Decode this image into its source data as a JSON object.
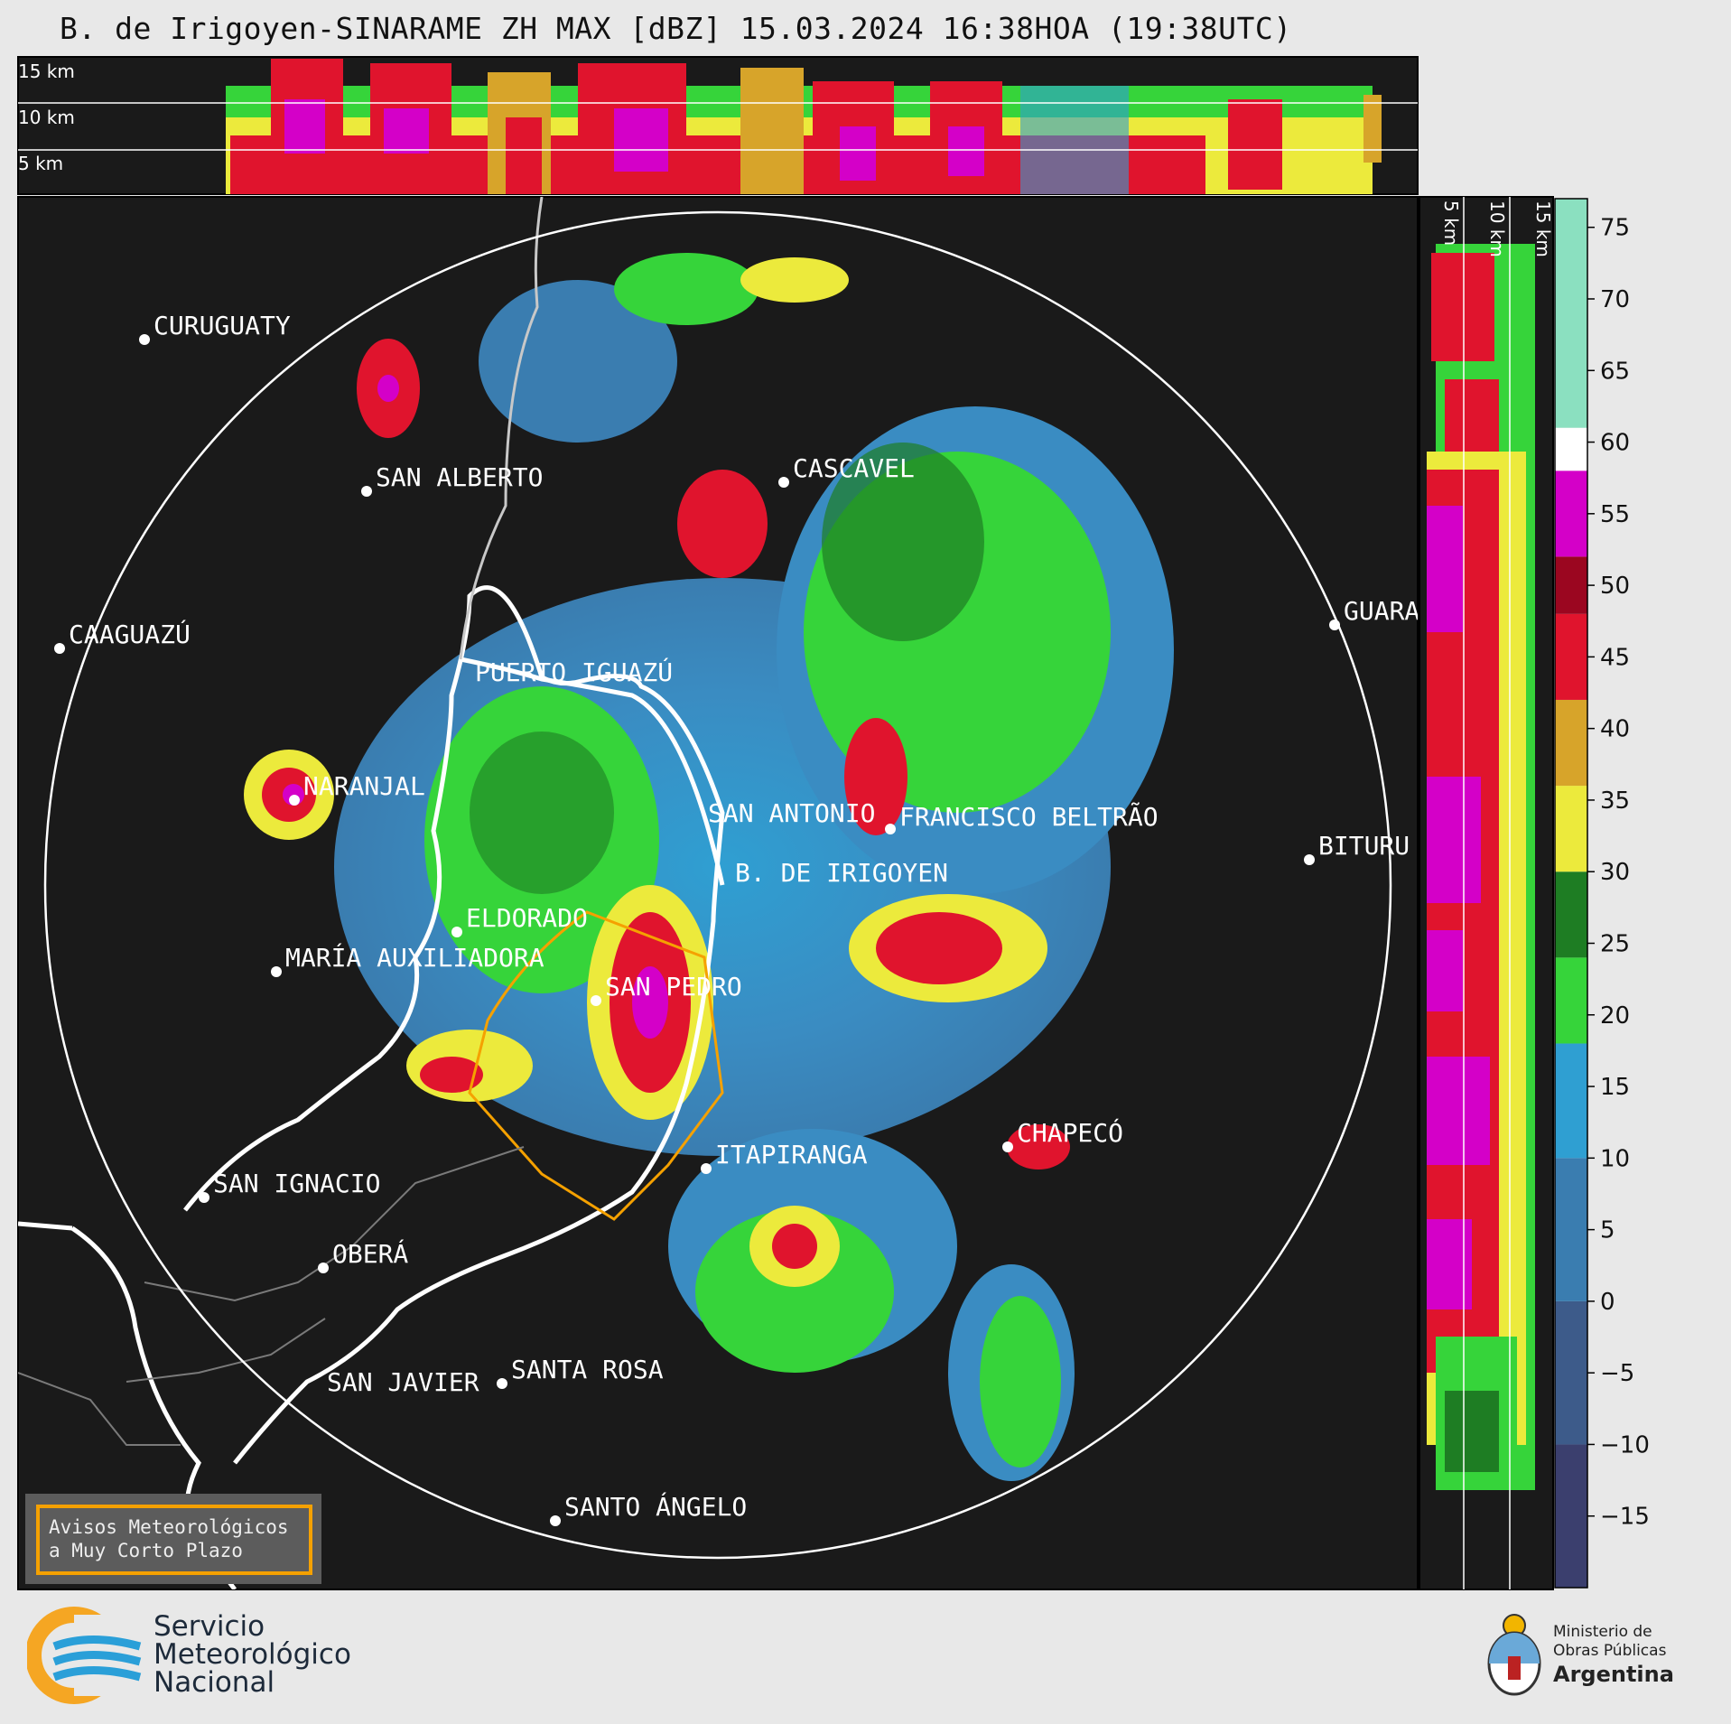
{
  "title": "B. de Irigoyen-SINARAME ZH MAX [dBZ] 15.03.2024 16:38HOA (19:38UTC)",
  "top_panel": {
    "height_labels": [
      "15 km",
      "10 km",
      "5 km"
    ]
  },
  "side_panel": {
    "height_labels": [
      "5 km",
      "10 km",
      "15 km"
    ]
  },
  "colorbar": {
    "unit": "dBZ",
    "tick_labels": [
      "75",
      "70",
      "65",
      "60",
      "55",
      "50",
      "45",
      "40",
      "35",
      "30",
      "25",
      "20",
      "15",
      "10",
      "5",
      "0",
      "−5",
      "−10",
      "−15"
    ],
    "tick_values": [
      75,
      70,
      65,
      60,
      55,
      50,
      45,
      40,
      35,
      30,
      25,
      20,
      15,
      10,
      5,
      0,
      -5,
      -10,
      -15
    ],
    "range": [
      -20,
      77
    ],
    "stops": [
      {
        "from": -20,
        "to": -10,
        "color": "#3b3f6e"
      },
      {
        "from": -10,
        "to": 0,
        "color": "#3d5b8a"
      },
      {
        "from": 0,
        "to": 10,
        "color": "#3a7db0"
      },
      {
        "from": 10,
        "to": 18,
        "color": "#2f9fd2"
      },
      {
        "from": 18,
        "to": 24,
        "color": "#36d43a"
      },
      {
        "from": 24,
        "to": 30,
        "color": "#1e7d23"
      },
      {
        "from": 30,
        "to": 36,
        "color": "#ecea3c"
      },
      {
        "from": 36,
        "to": 42,
        "color": "#d7a42a"
      },
      {
        "from": 42,
        "to": 48,
        "color": "#e0142d"
      },
      {
        "from": 48,
        "to": 52,
        "color": "#9b0620"
      },
      {
        "from": 52,
        "to": 58,
        "color": "#d400c8"
      },
      {
        "from": 58,
        "to": 61,
        "color": "#ffffff"
      },
      {
        "from": 61,
        "to": 77,
        "color": "#8be0c0"
      }
    ]
  },
  "map": {
    "cities": [
      {
        "name": "CURUGUATY"
      },
      {
        "name": "SAN ALBERTO"
      },
      {
        "name": "CASCAVEL"
      },
      {
        "name": "CAAGUAZÚ"
      },
      {
        "name": "GUARA"
      },
      {
        "name": "PUERTO IGUAZÚ"
      },
      {
        "name": "NARANJAL"
      },
      {
        "name": "SAN ANTONIO"
      },
      {
        "name": "FRANCISCO BELTRÃO"
      },
      {
        "name": "B. DE IRIGOYEN"
      },
      {
        "name": "BITURU"
      },
      {
        "name": "ELDORADO"
      },
      {
        "name": "MARÍA AUXILIADORA"
      },
      {
        "name": "SAN PEDRO"
      },
      {
        "name": "CHAPECÓ"
      },
      {
        "name": "ITAPIRANGA"
      },
      {
        "name": "SAN IGNACIO"
      },
      {
        "name": "OBERÁ"
      },
      {
        "name": "SAN JAVIER"
      },
      {
        "name": "SANTA ROSA"
      },
      {
        "name": "SANTO ÁNGELO"
      }
    ]
  },
  "warning_box": {
    "line1": "Avisos Meteorológicos",
    "line2": "a Muy Corto Plazo"
  },
  "footer": {
    "org_line1": "Servicio",
    "org_line2": "Meteorológico",
    "org_line3": "Nacional",
    "ministry_line1": "Ministerio de",
    "ministry_line2": "Obras Públicas",
    "ministry_line3": "Argentina"
  },
  "colors": {
    "background": "#1a1a1a",
    "page": "#e8e8e8",
    "range_ring": "#ffffff",
    "warning_polygon": "#f5a100",
    "smn_yellow": "#f5a623",
    "smn_blue": "#2a9fd8"
  }
}
